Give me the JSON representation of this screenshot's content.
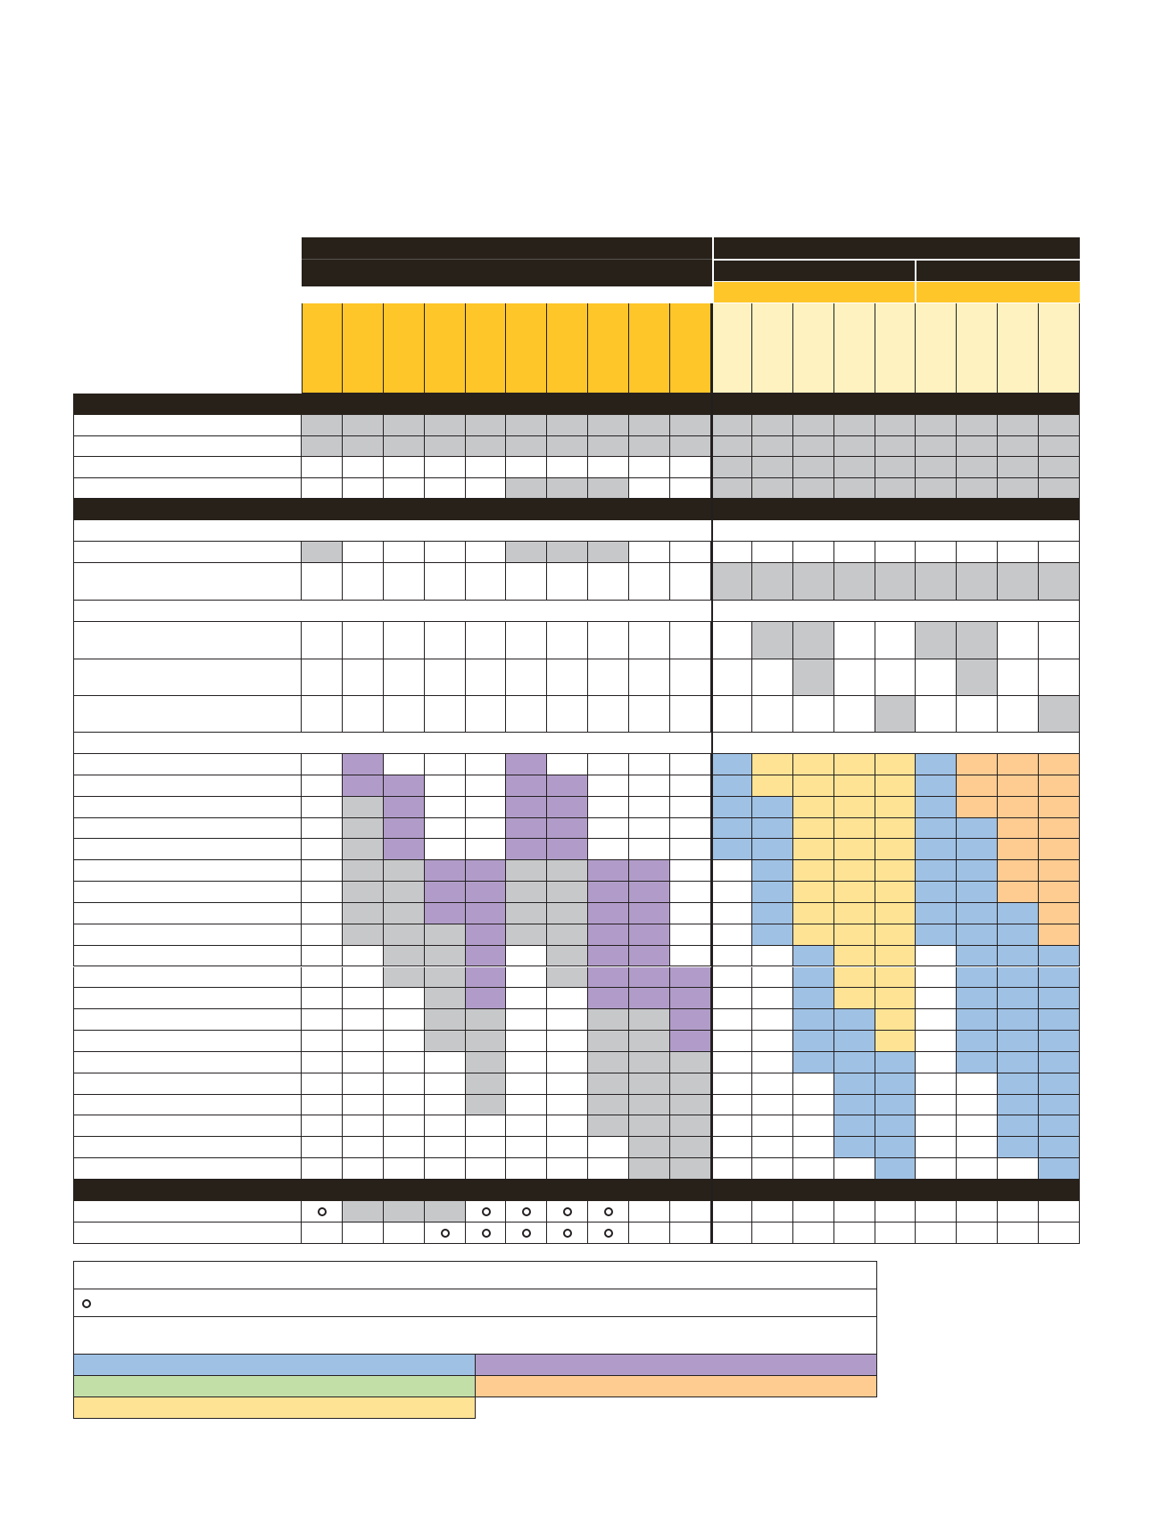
{
  "colors": {
    "dark": "#27211a",
    "gold": "#ffc629",
    "pale_yellow": "#fef2c0",
    "gray": "#c7c8ca",
    "blue": "#9fc1e4",
    "purple": "#b19cc9",
    "green": "#c3dfa8",
    "orange": "#fecb91",
    "light_yellow": "#fee394",
    "white": "#ffffff"
  },
  "legend": {
    "marker_icon": "open-circle-icon",
    "swatches": [
      "blue",
      "purple",
      "green",
      "orange",
      "light_yellow"
    ]
  },
  "matrix": {
    "columns": 19,
    "section_1_rows": [
      "GGGGGGGGGGGGGGGGGGG",
      "GGGGGGGGGGGGGGGGGGG",
      "..........GGGGGGGGG",
      ".....GGG..GGGGGGGGG"
    ],
    "section_2_rows": [
      "G....GGG...........",
      "..........GGGGGGGGG",
      "...........GG..GG..",
      "............G...G..",
      "..............G...G"
    ],
    "section_3_rows": [
      ".P...P....BYYYYBOOO",
      ".PP..PP...BYYYYBOOO",
      ".GP..PP...BBYYYBOOO",
      ".GP..PP...BBYYYBBOO",
      ".GP..PP...BBYYYBBOO",
      ".GGPPGGPP..BYYYBBOO",
      ".GGPPGGPP..BYYYBBOO",
      ".GGPPGGPP..BYYYBBBO",
      ".GGGPGGPP..BYYYBBBO",
      "..GGP.GPP...BYY.BBB",
      "..GGP.GPPP..BYY.BBB",
      "...GP..PPP..BYY.BBB",
      "...GG..GGP..BBY.BBB",
      "...GG..GGP..BBY.BBB",
      "....G..GGG..BBB.BBB",
      "....G..GGG...BB..BB",
      "....G..GGG...BB..BB",
      ".......GGG...BB..BB",
      "........GG...BB..BB",
      "........GG....B...B"
    ],
    "section_4_rows": [
      "OGGGOOOO...........",
      "...OOOOO..........."
    ]
  }
}
